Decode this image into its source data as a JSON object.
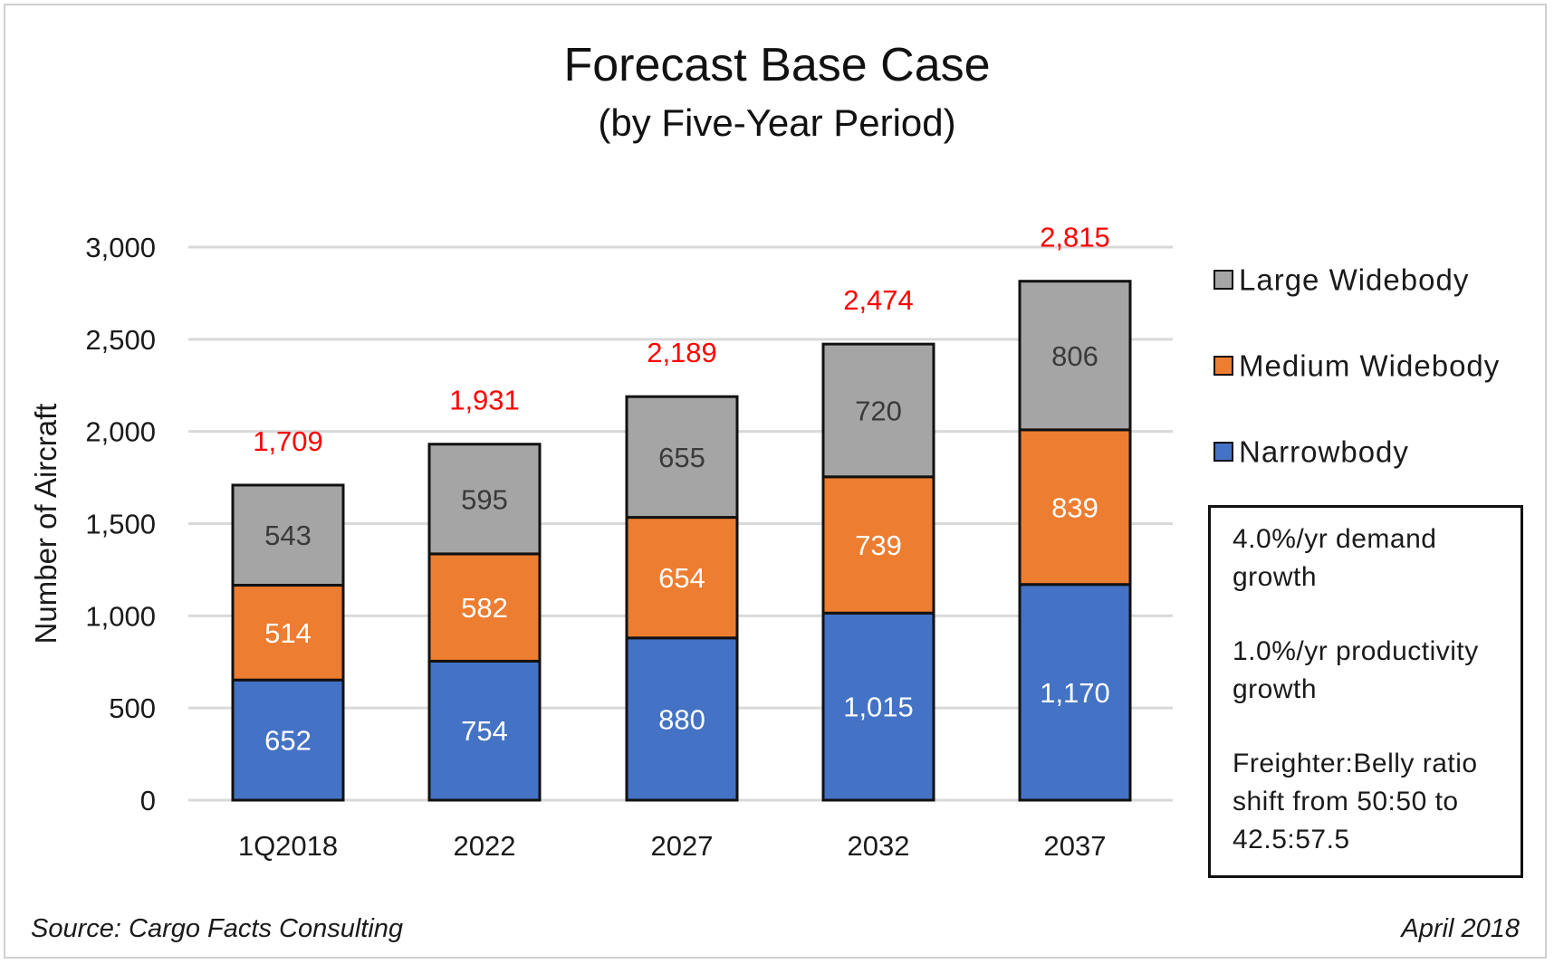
{
  "title": "Forecast Base Case",
  "subtitle": "(by Five-Year Period)",
  "chart_data": {
    "type": "bar",
    "stacked": true,
    "categories": [
      "1Q2018",
      "2022",
      "2027",
      "2032",
      "2037"
    ],
    "series": [
      {
        "name": "Narrowbody",
        "color": "#4472c4",
        "label_color": "#ffffff",
        "values": [
          652,
          754,
          880,
          1015,
          1170
        ]
      },
      {
        "name": "Medium Widebody",
        "color": "#ed7d31",
        "label_color": "#ffffff",
        "values": [
          514,
          582,
          654,
          739,
          839
        ]
      },
      {
        "name": "Large Widebody",
        "color": "#a5a5a5",
        "label_color": "#3a3a3a",
        "values": [
          543,
          595,
          655,
          720,
          806
        ]
      }
    ],
    "totals": [
      1709,
      1931,
      2189,
      2474,
      2815
    ],
    "total_label_color": "#ff0000",
    "ylabel": "Number of Aircraft",
    "xlabel": "",
    "ylim": [
      0,
      3000
    ],
    "yticks": [
      0,
      500,
      1000,
      1500,
      2000,
      2500,
      3000
    ],
    "grid": true,
    "legend_position": "right"
  },
  "legend": {
    "items": [
      {
        "label": "Large Widebody",
        "color": "#a5a5a5"
      },
      {
        "label": "Medium Widebody",
        "color": "#ed7d31"
      },
      {
        "label": "Narrowbody",
        "color": "#4472c4"
      }
    ]
  },
  "notes": [
    "4.0%/yr demand growth",
    "1.0%/yr productivity growth",
    "Freighter:Belly ratio shift from 50:50 to 42.5:57.5"
  ],
  "footer": {
    "source": "Source: Cargo Facts Consulting",
    "date": "April 2018"
  }
}
